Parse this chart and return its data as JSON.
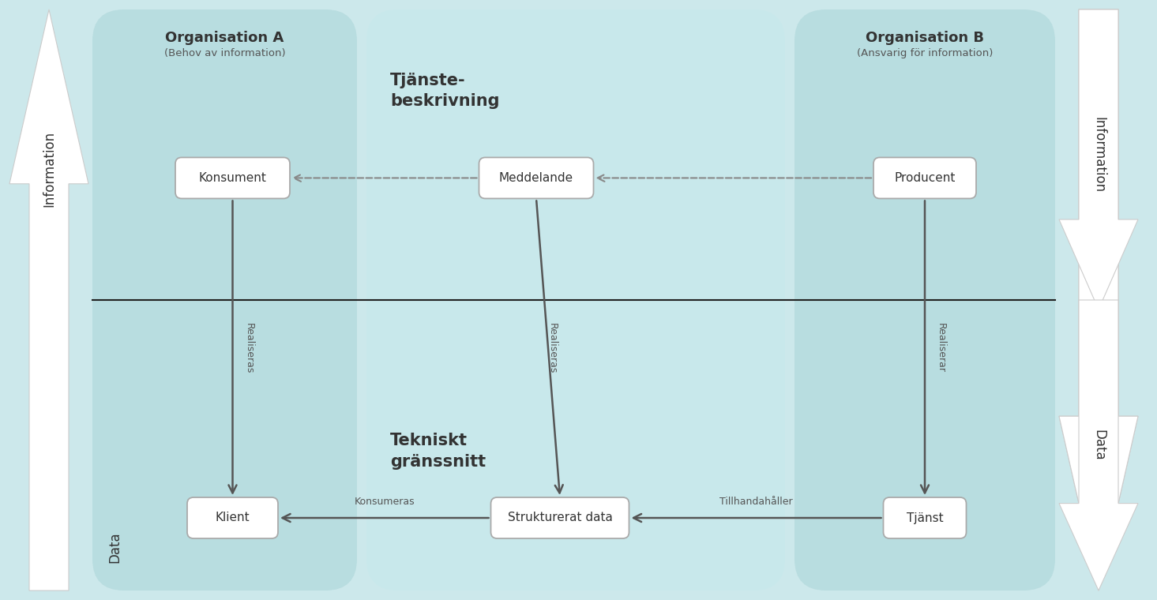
{
  "bg_color": "#cce8eb",
  "panel_left_color": "#b8dde0",
  "panel_mid_color": "#c8e8eb",
  "panel_right_color": "#b8dde0",
  "box_face": "#ffffff",
  "box_edge": "#aaaaaa",
  "arrow_solid": "#555555",
  "arrow_dashed": "#888888",
  "divider_color": "#222222",
  "text_dark": "#333333",
  "text_mid": "#555555",
  "org_a_title": "Organisation A",
  "org_a_sub": "(Behov av information)",
  "org_b_title": "Organisation B",
  "org_b_sub": "(Ansvarig för information)",
  "service_title": "Tjänste-\nbeskrivning",
  "tech_title": "Tekniskt\ngränssnitt",
  "lbl_konsument": "Konsument",
  "lbl_meddelande": "Meddelande",
  "lbl_producent": "Producent",
  "lbl_klient": "Klient",
  "lbl_strukturerat": "Strukturerat data",
  "lbl_tjanst": "Tjänst",
  "lbl_realiseras_l": "Realiseras",
  "lbl_realiseras_m": "Realiseras",
  "lbl_realiserar_r": "Realiserar",
  "lbl_konsumeras": "Konsumeras",
  "lbl_tillhandahaller": "Tillhandahåller",
  "lbl_information_l": "Information",
  "lbl_information_r": "Information",
  "lbl_data_l": "Data",
  "lbl_data_r": "Data",
  "fig_w": 14.65,
  "fig_h": 7.6,
  "dpi": 100
}
